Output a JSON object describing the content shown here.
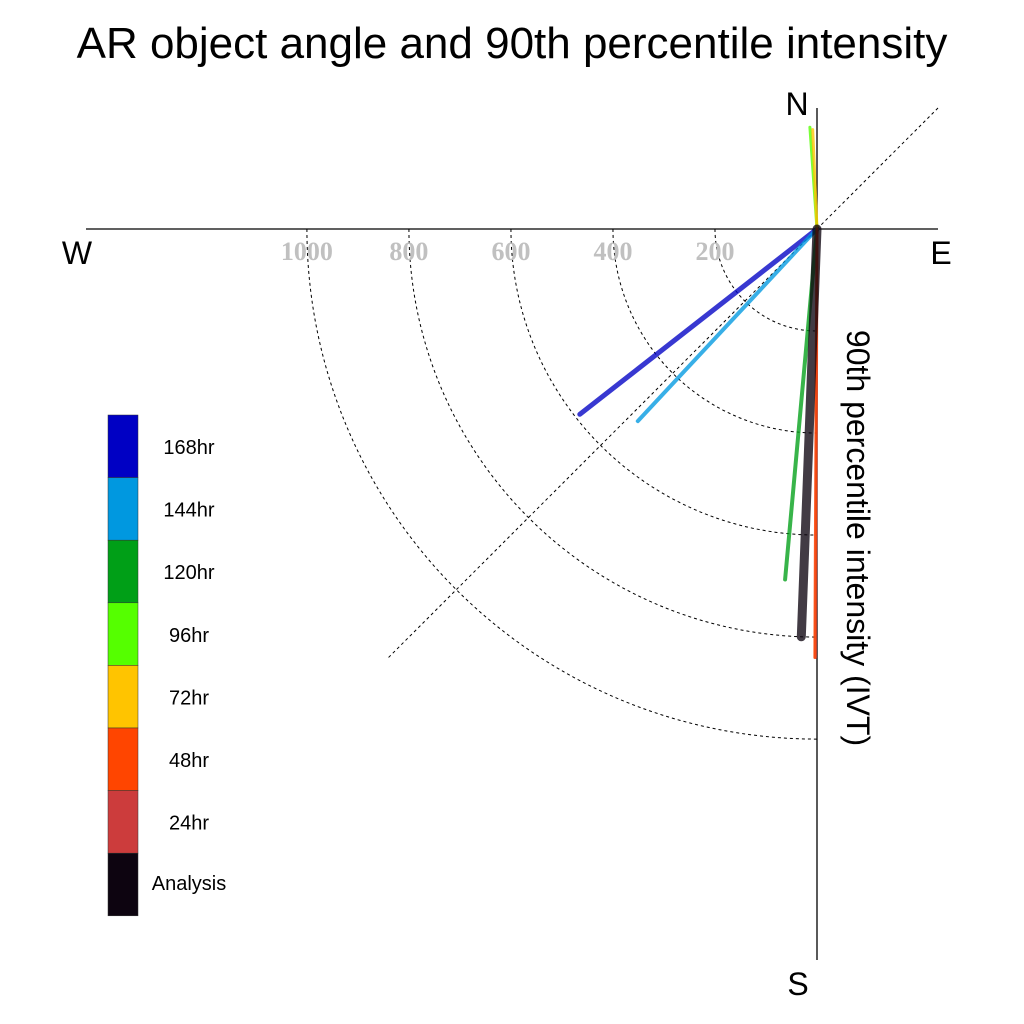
{
  "chart_data": {
    "type": "polar-vector",
    "title": "AR object angle and 90th percentile intensity",
    "radial_axis_label": "90th percentile intensity (IVT)",
    "compass": {
      "north": "N",
      "south": "S",
      "east": "E",
      "west": "W"
    },
    "radial_ticks": [
      200,
      400,
      600,
      800,
      1000
    ],
    "radial_tick_labels": [
      "200",
      "400",
      "600",
      "800",
      "1000"
    ],
    "rmax": 1190,
    "grid": true,
    "legend_placement": "left",
    "series": [
      {
        "name": "Analysis",
        "color": "#0d0410",
        "width": 9,
        "value": 800,
        "direction_deg": 182.2
      },
      {
        "name": "24hr",
        "color": "#cc3c3c",
        "width": 3,
        "value": 840,
        "direction_deg": 180.2
      },
      {
        "name": "48hr",
        "color": "#ff4500",
        "width": 3,
        "value": 840,
        "direction_deg": 180.3
      },
      {
        "name": "72hr",
        "color": "#ffc400",
        "width": 3,
        "value": 195,
        "direction_deg": 357.5
      },
      {
        "name": "96hr",
        "color": "#55ff00",
        "width": 3,
        "value": 200,
        "direction_deg": 356
      },
      {
        "name": "120hr",
        "color": "#009f17",
        "width": 4,
        "value": 690,
        "direction_deg": 185.2
      },
      {
        "name": "144hr",
        "color": "#0098e0",
        "width": 4,
        "value": 515,
        "direction_deg": 223
      },
      {
        "name": "168hr",
        "color": "#0000c4",
        "width": 5,
        "value": 590,
        "direction_deg": 232
      }
    ],
    "legend_order": [
      "168hr",
      "144hr",
      "120hr",
      "96hr",
      "72hr",
      "48hr",
      "24hr",
      "Analysis"
    ]
  }
}
